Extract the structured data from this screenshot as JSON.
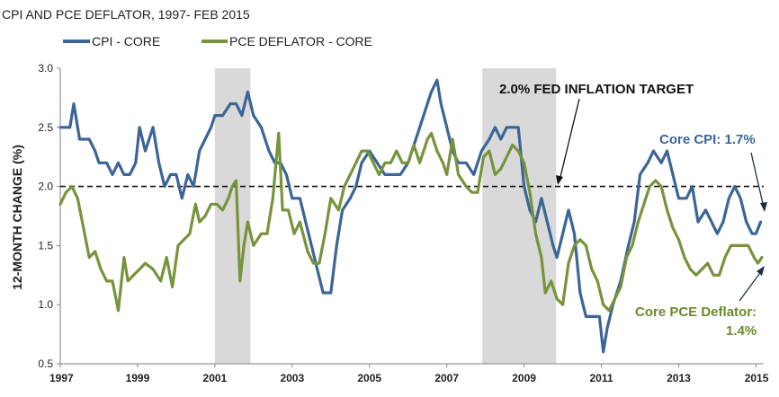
{
  "chart_data": {
    "type": "line",
    "title": "CPI AND  PCE DEFLATOR, 1997- FEB 2015",
    "ylabel": "12-MONTH  CHANGE (%)",
    "xlabel": "",
    "xlim": [
      1997.0,
      2015.2
    ],
    "ylim": [
      0.5,
      3.0
    ],
    "y_ticks": [
      "0.5",
      "1.0",
      "1.5",
      "2.0",
      "2.5",
      "3.0"
    ],
    "y_tick_values": [
      0.5,
      1.0,
      1.5,
      2.0,
      2.5,
      3.0
    ],
    "x_ticks": [
      "1997",
      "1999",
      "2001",
      "2003",
      "2005",
      "2007",
      "2009",
      "2011",
      "2013",
      "2015"
    ],
    "x_tick_values": [
      1997,
      1999,
      2001,
      2003,
      2005,
      2007,
      2009,
      2011,
      2013,
      2015
    ],
    "grid": false,
    "legend_position": "top-left",
    "recessions": [
      [
        2001.0,
        2001.92
      ],
      [
        2007.92,
        2009.83
      ]
    ],
    "reference_line": {
      "y": 2.0,
      "label": "2.0% FED INFLATION TARGET"
    },
    "series": [
      {
        "name": "CPI - CORE",
        "color": "#3c6597",
        "points": [
          [
            1997.0,
            2.5
          ],
          [
            1997.25,
            2.5
          ],
          [
            1997.35,
            2.7
          ],
          [
            1997.5,
            2.4
          ],
          [
            1997.75,
            2.4
          ],
          [
            1997.9,
            2.3
          ],
          [
            1998.0,
            2.2
          ],
          [
            1998.2,
            2.2
          ],
          [
            1998.35,
            2.1
          ],
          [
            1998.5,
            2.2
          ],
          [
            1998.65,
            2.1
          ],
          [
            1998.8,
            2.1
          ],
          [
            1998.95,
            2.2
          ],
          [
            1999.05,
            2.5
          ],
          [
            1999.2,
            2.3
          ],
          [
            1999.4,
            2.5
          ],
          [
            1999.55,
            2.2
          ],
          [
            1999.7,
            2.0
          ],
          [
            1999.85,
            2.1
          ],
          [
            2000.0,
            2.1
          ],
          [
            2000.15,
            1.9
          ],
          [
            2000.3,
            2.1
          ],
          [
            2000.45,
            2.0
          ],
          [
            2000.6,
            2.3
          ],
          [
            2000.75,
            2.4
          ],
          [
            2000.9,
            2.5
          ],
          [
            2001.0,
            2.6
          ],
          [
            2001.2,
            2.6
          ],
          [
            2001.4,
            2.7
          ],
          [
            2001.55,
            2.7
          ],
          [
            2001.7,
            2.6
          ],
          [
            2001.85,
            2.8
          ],
          [
            2002.0,
            2.6
          ],
          [
            2002.2,
            2.5
          ],
          [
            2002.4,
            2.3
          ],
          [
            2002.55,
            2.2
          ],
          [
            2002.7,
            2.2
          ],
          [
            2002.85,
            2.1
          ],
          [
            2003.0,
            1.9
          ],
          [
            2003.2,
            1.9
          ],
          [
            2003.35,
            1.7
          ],
          [
            2003.5,
            1.5
          ],
          [
            2003.65,
            1.3
          ],
          [
            2003.8,
            1.1
          ],
          [
            2004.0,
            1.1
          ],
          [
            2004.15,
            1.5
          ],
          [
            2004.3,
            1.8
          ],
          [
            2004.5,
            1.9
          ],
          [
            2004.65,
            2.0
          ],
          [
            2004.8,
            2.2
          ],
          [
            2005.0,
            2.3
          ],
          [
            2005.2,
            2.2
          ],
          [
            2005.4,
            2.1
          ],
          [
            2005.6,
            2.1
          ],
          [
            2005.8,
            2.1
          ],
          [
            2006.0,
            2.2
          ],
          [
            2006.2,
            2.4
          ],
          [
            2006.4,
            2.6
          ],
          [
            2006.6,
            2.8
          ],
          [
            2006.75,
            2.9
          ],
          [
            2006.85,
            2.7
          ],
          [
            2007.0,
            2.5
          ],
          [
            2007.15,
            2.3
          ],
          [
            2007.3,
            2.2
          ],
          [
            2007.5,
            2.2
          ],
          [
            2007.7,
            2.1
          ],
          [
            2007.9,
            2.3
          ],
          [
            2008.1,
            2.4
          ],
          [
            2008.25,
            2.5
          ],
          [
            2008.4,
            2.4
          ],
          [
            2008.55,
            2.5
          ],
          [
            2008.7,
            2.5
          ],
          [
            2008.85,
            2.5
          ],
          [
            2009.0,
            2.0
          ],
          [
            2009.15,
            1.8
          ],
          [
            2009.3,
            1.7
          ],
          [
            2009.45,
            1.9
          ],
          [
            2009.6,
            1.7
          ],
          [
            2009.75,
            1.5
          ],
          [
            2009.85,
            1.4
          ],
          [
            2010.0,
            1.6
          ],
          [
            2010.15,
            1.8
          ],
          [
            2010.3,
            1.6
          ],
          [
            2010.45,
            1.1
          ],
          [
            2010.6,
            0.9
          ],
          [
            2010.8,
            0.9
          ],
          [
            2010.95,
            0.9
          ],
          [
            2011.05,
            0.6
          ],
          [
            2011.15,
            0.8
          ],
          [
            2011.3,
            1.0
          ],
          [
            2011.5,
            1.2
          ],
          [
            2011.7,
            1.5
          ],
          [
            2011.85,
            1.7
          ],
          [
            2012.0,
            2.1
          ],
          [
            2012.2,
            2.2
          ],
          [
            2012.35,
            2.3
          ],
          [
            2012.55,
            2.2
          ],
          [
            2012.7,
            2.3
          ],
          [
            2012.85,
            2.1
          ],
          [
            2013.0,
            1.9
          ],
          [
            2013.2,
            1.9
          ],
          [
            2013.35,
            2.0
          ],
          [
            2013.5,
            1.7
          ],
          [
            2013.7,
            1.8
          ],
          [
            2013.85,
            1.7
          ],
          [
            2014.0,
            1.6
          ],
          [
            2014.15,
            1.7
          ],
          [
            2014.3,
            1.9
          ],
          [
            2014.45,
            2.0
          ],
          [
            2014.6,
            1.9
          ],
          [
            2014.75,
            1.7
          ],
          [
            2014.9,
            1.6
          ],
          [
            2015.0,
            1.6
          ],
          [
            2015.12,
            1.7
          ]
        ]
      },
      {
        "name": "PCE DEFLATOR - CORE",
        "color": "#77933c",
        "points": [
          [
            1997.0,
            1.85
          ],
          [
            1997.15,
            1.95
          ],
          [
            1997.3,
            2.0
          ],
          [
            1997.45,
            1.9
          ],
          [
            1997.6,
            1.65
          ],
          [
            1997.75,
            1.4
          ],
          [
            1997.9,
            1.45
          ],
          [
            1998.05,
            1.3
          ],
          [
            1998.2,
            1.2
          ],
          [
            1998.35,
            1.2
          ],
          [
            1998.5,
            0.95
          ],
          [
            1998.65,
            1.4
          ],
          [
            1998.75,
            1.2
          ],
          [
            1998.9,
            1.25
          ],
          [
            1999.05,
            1.3
          ],
          [
            1999.2,
            1.35
          ],
          [
            1999.4,
            1.3
          ],
          [
            1999.6,
            1.2
          ],
          [
            1999.75,
            1.4
          ],
          [
            1999.9,
            1.15
          ],
          [
            2000.05,
            1.5
          ],
          [
            2000.2,
            1.55
          ],
          [
            2000.35,
            1.6
          ],
          [
            2000.5,
            1.85
          ],
          [
            2000.6,
            1.7
          ],
          [
            2000.75,
            1.75
          ],
          [
            2000.9,
            1.85
          ],
          [
            2001.05,
            1.85
          ],
          [
            2001.2,
            1.8
          ],
          [
            2001.35,
            1.9
          ],
          [
            2001.45,
            2.0
          ],
          [
            2001.55,
            2.05
          ],
          [
            2001.65,
            1.2
          ],
          [
            2001.75,
            1.5
          ],
          [
            2001.85,
            1.7
          ],
          [
            2002.0,
            1.5
          ],
          [
            2002.2,
            1.6
          ],
          [
            2002.35,
            1.6
          ],
          [
            2002.5,
            1.9
          ],
          [
            2002.65,
            2.45
          ],
          [
            2002.75,
            1.8
          ],
          [
            2002.9,
            1.8
          ],
          [
            2003.05,
            1.6
          ],
          [
            2003.2,
            1.7
          ],
          [
            2003.4,
            1.45
          ],
          [
            2003.55,
            1.35
          ],
          [
            2003.7,
            1.35
          ],
          [
            2003.85,
            1.6
          ],
          [
            2004.0,
            1.9
          ],
          [
            2004.2,
            1.8
          ],
          [
            2004.35,
            2.0
          ],
          [
            2004.5,
            2.1
          ],
          [
            2004.65,
            2.2
          ],
          [
            2004.8,
            2.3
          ],
          [
            2004.95,
            2.3
          ],
          [
            2005.1,
            2.2
          ],
          [
            2005.25,
            2.1
          ],
          [
            2005.4,
            2.2
          ],
          [
            2005.55,
            2.2
          ],
          [
            2005.7,
            2.3
          ],
          [
            2005.85,
            2.2
          ],
          [
            2006.0,
            2.2
          ],
          [
            2006.15,
            2.35
          ],
          [
            2006.3,
            2.2
          ],
          [
            2006.5,
            2.4
          ],
          [
            2006.6,
            2.45
          ],
          [
            2006.75,
            2.3
          ],
          [
            2006.9,
            2.2
          ],
          [
            2007.0,
            2.1
          ],
          [
            2007.15,
            2.4
          ],
          [
            2007.3,
            2.1
          ],
          [
            2007.5,
            2.0
          ],
          [
            2007.65,
            1.95
          ],
          [
            2007.8,
            1.95
          ],
          [
            2007.95,
            2.25
          ],
          [
            2008.1,
            2.3
          ],
          [
            2008.25,
            2.1
          ],
          [
            2008.4,
            2.15
          ],
          [
            2008.55,
            2.25
          ],
          [
            2008.7,
            2.35
          ],
          [
            2008.85,
            2.3
          ],
          [
            2009.0,
            2.2
          ],
          [
            2009.15,
            1.95
          ],
          [
            2009.3,
            1.6
          ],
          [
            2009.45,
            1.4
          ],
          [
            2009.55,
            1.1
          ],
          [
            2009.7,
            1.2
          ],
          [
            2009.85,
            1.05
          ],
          [
            2010.0,
            1.0
          ],
          [
            2010.15,
            1.35
          ],
          [
            2010.3,
            1.5
          ],
          [
            2010.45,
            1.55
          ],
          [
            2010.6,
            1.5
          ],
          [
            2010.75,
            1.3
          ],
          [
            2010.9,
            1.2
          ],
          [
            2011.05,
            1.0
          ],
          [
            2011.2,
            0.95
          ],
          [
            2011.35,
            1.05
          ],
          [
            2011.5,
            1.15
          ],
          [
            2011.65,
            1.4
          ],
          [
            2011.8,
            1.5
          ],
          [
            2011.95,
            1.7
          ],
          [
            2012.1,
            1.85
          ],
          [
            2012.25,
            2.0
          ],
          [
            2012.4,
            2.05
          ],
          [
            2012.55,
            2.0
          ],
          [
            2012.7,
            1.8
          ],
          [
            2012.85,
            1.65
          ],
          [
            2013.0,
            1.55
          ],
          [
            2013.15,
            1.4
          ],
          [
            2013.3,
            1.3
          ],
          [
            2013.45,
            1.25
          ],
          [
            2013.6,
            1.3
          ],
          [
            2013.75,
            1.35
          ],
          [
            2013.9,
            1.25
          ],
          [
            2014.05,
            1.25
          ],
          [
            2014.2,
            1.4
          ],
          [
            2014.35,
            1.5
          ],
          [
            2014.5,
            1.5
          ],
          [
            2014.65,
            1.5
          ],
          [
            2014.8,
            1.5
          ],
          [
            2014.95,
            1.4
          ],
          [
            2015.05,
            1.35
          ],
          [
            2015.15,
            1.4
          ]
        ]
      }
    ],
    "annotations": {
      "target": "2.0% FED INFLATION TARGET",
      "cpi": "Core CPI: 1.7%",
      "pce_line1": "Core PCE Deflator:",
      "pce_line2": "1.4%"
    }
  }
}
